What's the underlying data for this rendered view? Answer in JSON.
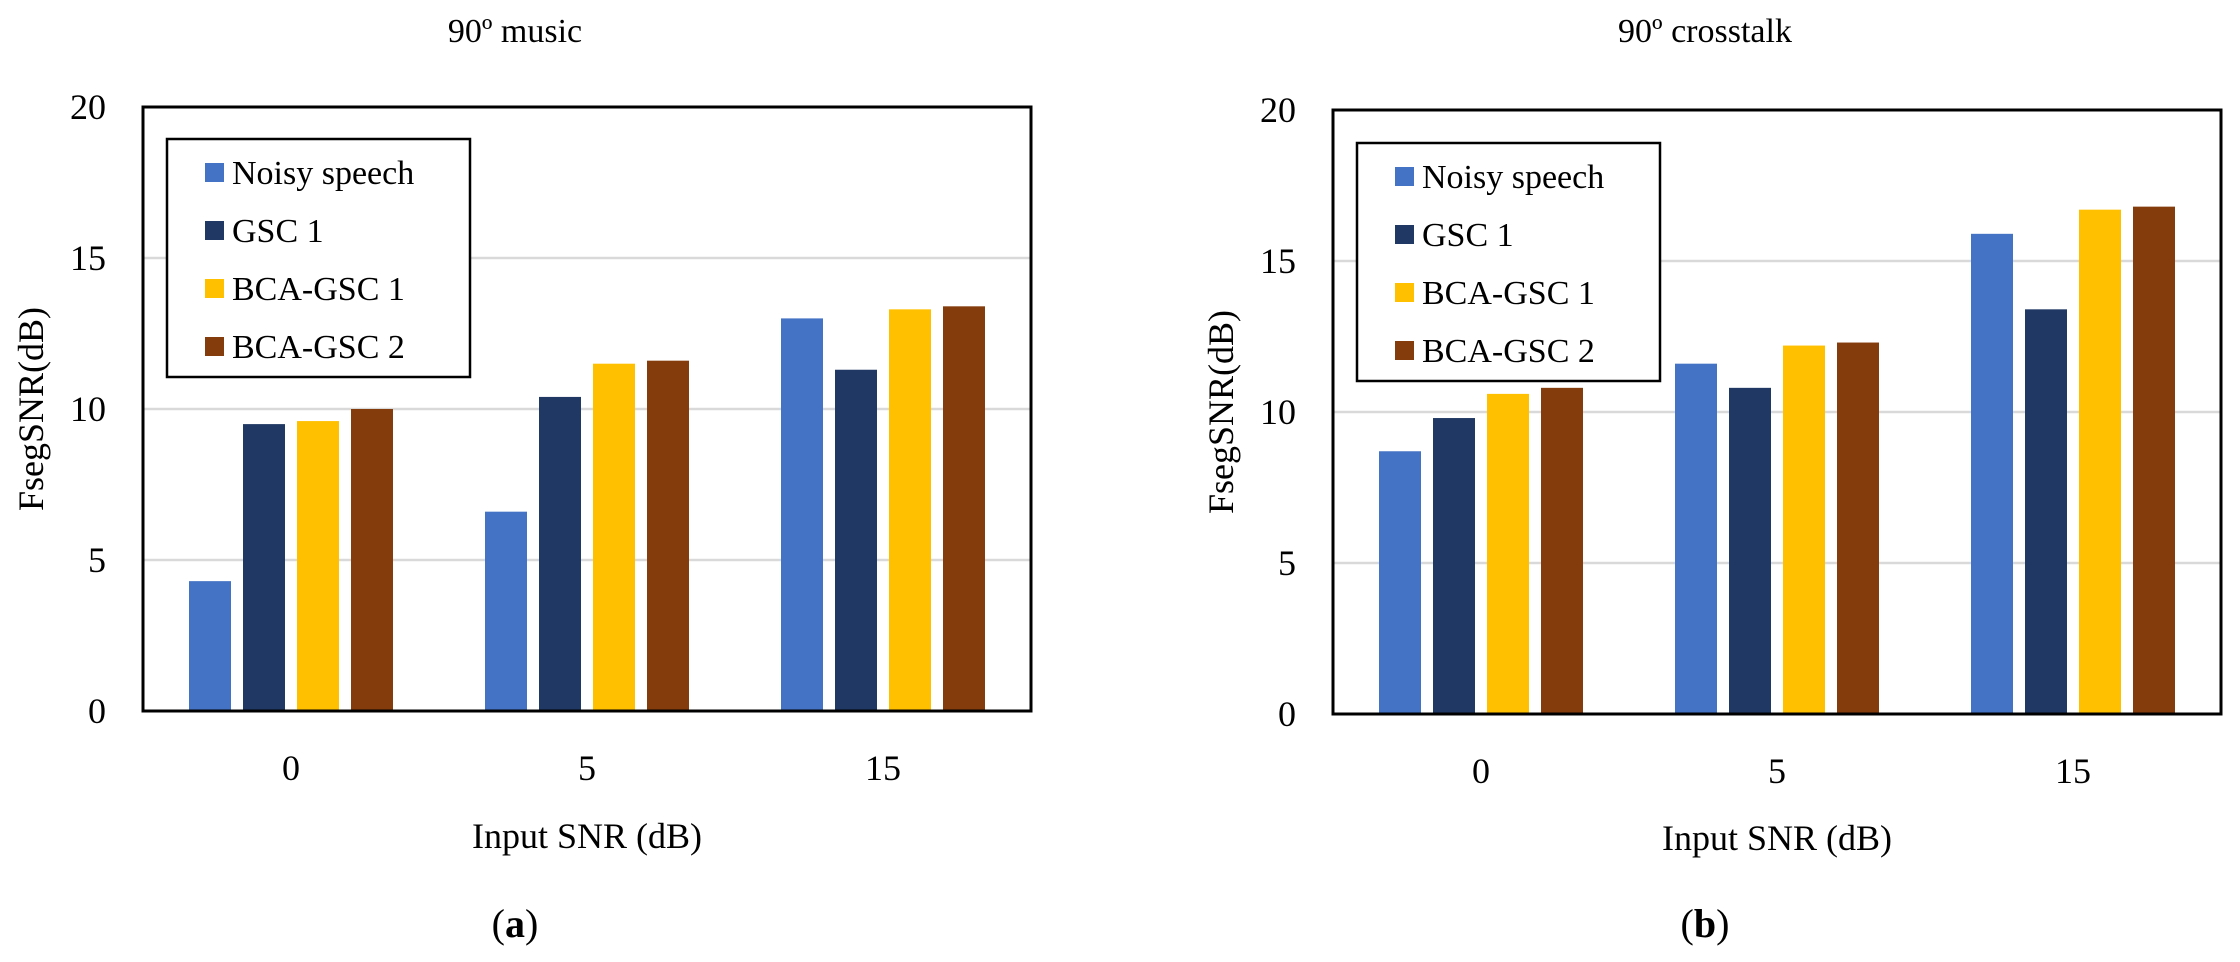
{
  "chart_data": [
    {
      "type": "bar",
      "title": "90º music",
      "panel_label": "a",
      "xlabel": "Input SNR (dB)",
      "ylabel": "FsegSNR(dB)",
      "categories": [
        "0",
        "5",
        "15"
      ],
      "ylim": [
        0,
        20
      ],
      "yticks": [
        0,
        5,
        10,
        15,
        20
      ],
      "grid": true,
      "legend_position": "top-left",
      "series": [
        {
          "name": "Noisy speech",
          "color": "#4472C4",
          "values": [
            4.3,
            6.6,
            13.0
          ]
        },
        {
          "name": "GSC 1",
          "color": "#203864",
          "values": [
            9.5,
            10.4,
            11.3
          ]
        },
        {
          "name": "BCA-GSC 1",
          "color": "#FFC000",
          "values": [
            9.6,
            11.5,
            13.3
          ]
        },
        {
          "name": "BCA-GSC 2",
          "color": "#843C0C",
          "values": [
            10.0,
            11.6,
            13.4
          ]
        }
      ]
    },
    {
      "type": "bar",
      "title": "90º crosstalk",
      "panel_label": "b",
      "xlabel": "Input SNR (dB)",
      "ylabel": "FsegSNR(dB)",
      "categories": [
        "0",
        "5",
        "15"
      ],
      "ylim": [
        0,
        20
      ],
      "yticks": [
        0,
        5,
        10,
        15,
        20
      ],
      "grid": true,
      "legend_position": "top-left",
      "series": [
        {
          "name": "Noisy speech",
          "color": "#4472C4",
          "values": [
            8.7,
            11.6,
            15.9
          ]
        },
        {
          "name": "GSC 1",
          "color": "#203864",
          "values": [
            9.8,
            10.8,
            13.4
          ]
        },
        {
          "name": "BCA-GSC 1",
          "color": "#FFC000",
          "values": [
            10.6,
            12.2,
            16.7
          ]
        },
        {
          "name": "BCA-GSC 2",
          "color": "#843C0C",
          "values": [
            10.8,
            12.3,
            16.8
          ]
        }
      ]
    }
  ]
}
